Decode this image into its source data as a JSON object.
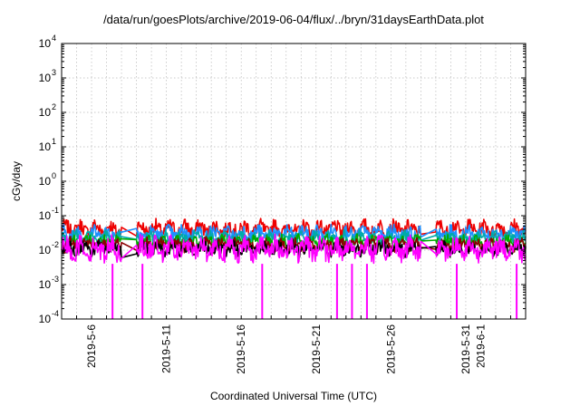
{
  "chart_data": {
    "type": "line",
    "title": "/data/run/goesPlots/archive/2019-06-04/flux/../bryn/31daysEarthData.plot",
    "xlabel": "Coordinated Universal Time (UTC)",
    "ylabel": "cGy/day",
    "y_scale": "log",
    "ylim": [
      0.0001,
      10000
    ],
    "y_ticks": [
      {
        "base": "10",
        "exp": "-4",
        "value": 0.0001
      },
      {
        "base": "10",
        "exp": "-3",
        "value": 0.001
      },
      {
        "base": "10",
        "exp": "-2",
        "value": 0.01
      },
      {
        "base": "10",
        "exp": "-1",
        "value": 0.1
      },
      {
        "base": "10",
        "exp": "0",
        "value": 1
      },
      {
        "base": "10",
        "exp": "1",
        "value": 10
      },
      {
        "base": "10",
        "exp": "2",
        "value": 100
      },
      {
        "base": "10",
        "exp": "3",
        "value": 1000
      },
      {
        "base": "10",
        "exp": "4",
        "value": 10000
      }
    ],
    "x_range": [
      "2019-05-04",
      "2019-06-04"
    ],
    "x_tick_labels": [
      {
        "label": "2019-5-6",
        "date": "2019-05-06"
      },
      {
        "label": "2019-5-11",
        "date": "2019-05-11"
      },
      {
        "label": "2019-5-16",
        "date": "2019-05-16"
      },
      {
        "label": "2019-5-21",
        "date": "2019-05-21"
      },
      {
        "label": "2019-5-26",
        "date": "2019-05-26"
      },
      {
        "label": "2019-5-31",
        "date": "2019-05-31"
      },
      {
        "label": "2019-6-1",
        "date": "2019-06-01"
      }
    ],
    "grid": true,
    "data_gaps": [
      {
        "start": "2019-05-08",
        "end": "2019-05-09"
      },
      {
        "start": "2019-05-28",
        "end": "2019-05-29"
      }
    ],
    "dropouts": [
      {
        "date": "2019-05-07",
        "series": "magenta",
        "min": 0.0001
      },
      {
        "date": "2019-05-09",
        "series": "magenta",
        "min": 0.0001
      },
      {
        "date": "2019-05-17",
        "series": "magenta",
        "min": 0.0001
      },
      {
        "date": "2019-05-22",
        "series": "magenta",
        "min": 0.0001
      },
      {
        "date": "2019-05-23",
        "series": "magenta",
        "min": 0.0001
      },
      {
        "date": "2019-05-24",
        "series": "magenta",
        "min": 0.0001
      },
      {
        "date": "2019-05-30",
        "series": "magenta",
        "min": 0.0001
      },
      {
        "date": "2019-06-03",
        "series": "magenta",
        "min": 0.0001
      }
    ],
    "series": [
      {
        "color": "#ee0000",
        "typical_low": 0.02,
        "typical_high": 0.085
      },
      {
        "color": "#1e90ff",
        "typical_low": 0.015,
        "typical_high": 0.06
      },
      {
        "color": "#00aaaa",
        "typical_low": 0.012,
        "typical_high": 0.04
      },
      {
        "color": "#00aa00",
        "typical_low": 0.01,
        "typical_high": 0.03
      },
      {
        "color": "#8b0000",
        "typical_low": 0.008,
        "typical_high": 0.025
      },
      {
        "color": "#000000",
        "typical_low": 0.006,
        "typical_high": 0.02
      },
      {
        "color": "#ff00ff",
        "typical_low": 0.004,
        "typical_high": 0.03
      }
    ]
  }
}
